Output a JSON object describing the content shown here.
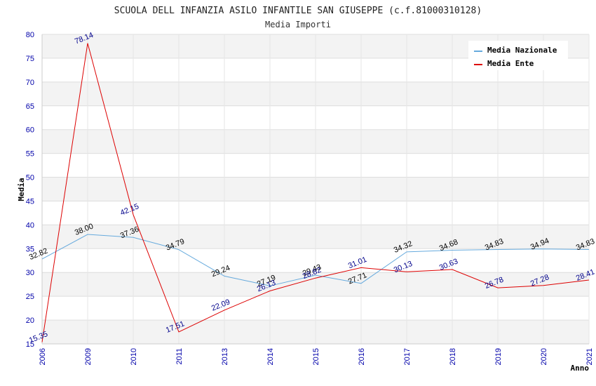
{
  "chart_data": {
    "type": "line",
    "title": "SCUOLA DELL INFANZIA ASILO INFANTILE SAN GIUSEPPE (c.f.81000310128)",
    "subtitle": "Media Importi",
    "xlabel": "Anno",
    "ylabel": "Media",
    "ylim": [
      15,
      80
    ],
    "yticks": [
      "15",
      "20",
      "25",
      "30",
      "35",
      "40",
      "45",
      "50",
      "55",
      "60",
      "65",
      "70",
      "75",
      "80"
    ],
    "categories": [
      "2006",
      "2009",
      "2010",
      "2011",
      "2013",
      "2014",
      "2015",
      "2016",
      "2017",
      "2018",
      "2019",
      "2020",
      "2021"
    ],
    "grid": true,
    "legend_position": "top-right",
    "series": [
      {
        "name": "Media Nazionale",
        "color": "#66aadd",
        "values": [
          32.82,
          38.0,
          37.36,
          34.79,
          29.24,
          27.19,
          29.43,
          27.71,
          34.32,
          34.68,
          34.83,
          34.94,
          34.83
        ],
        "labels": [
          "32.82",
          "38.00",
          "37.36",
          "34.79",
          "29.24",
          "27.19",
          "29.43",
          "27.71",
          "34.32",
          "34.68",
          "34.83",
          "34.94",
          "34.83"
        ]
      },
      {
        "name": "Media Ente",
        "color": "#dd0000",
        "values": [
          15.35,
          78.14,
          42.15,
          17.51,
          22.09,
          26.13,
          28.82,
          31.01,
          30.13,
          30.63,
          26.78,
          27.28,
          28.41
        ],
        "labels": [
          "15.35",
          "78.14",
          "42.15",
          "17.51",
          "22.09",
          "26.13",
          "28.82",
          "31.01",
          "30.13",
          "30.63",
          "26.78",
          "27.28",
          "28.41"
        ]
      }
    ]
  }
}
